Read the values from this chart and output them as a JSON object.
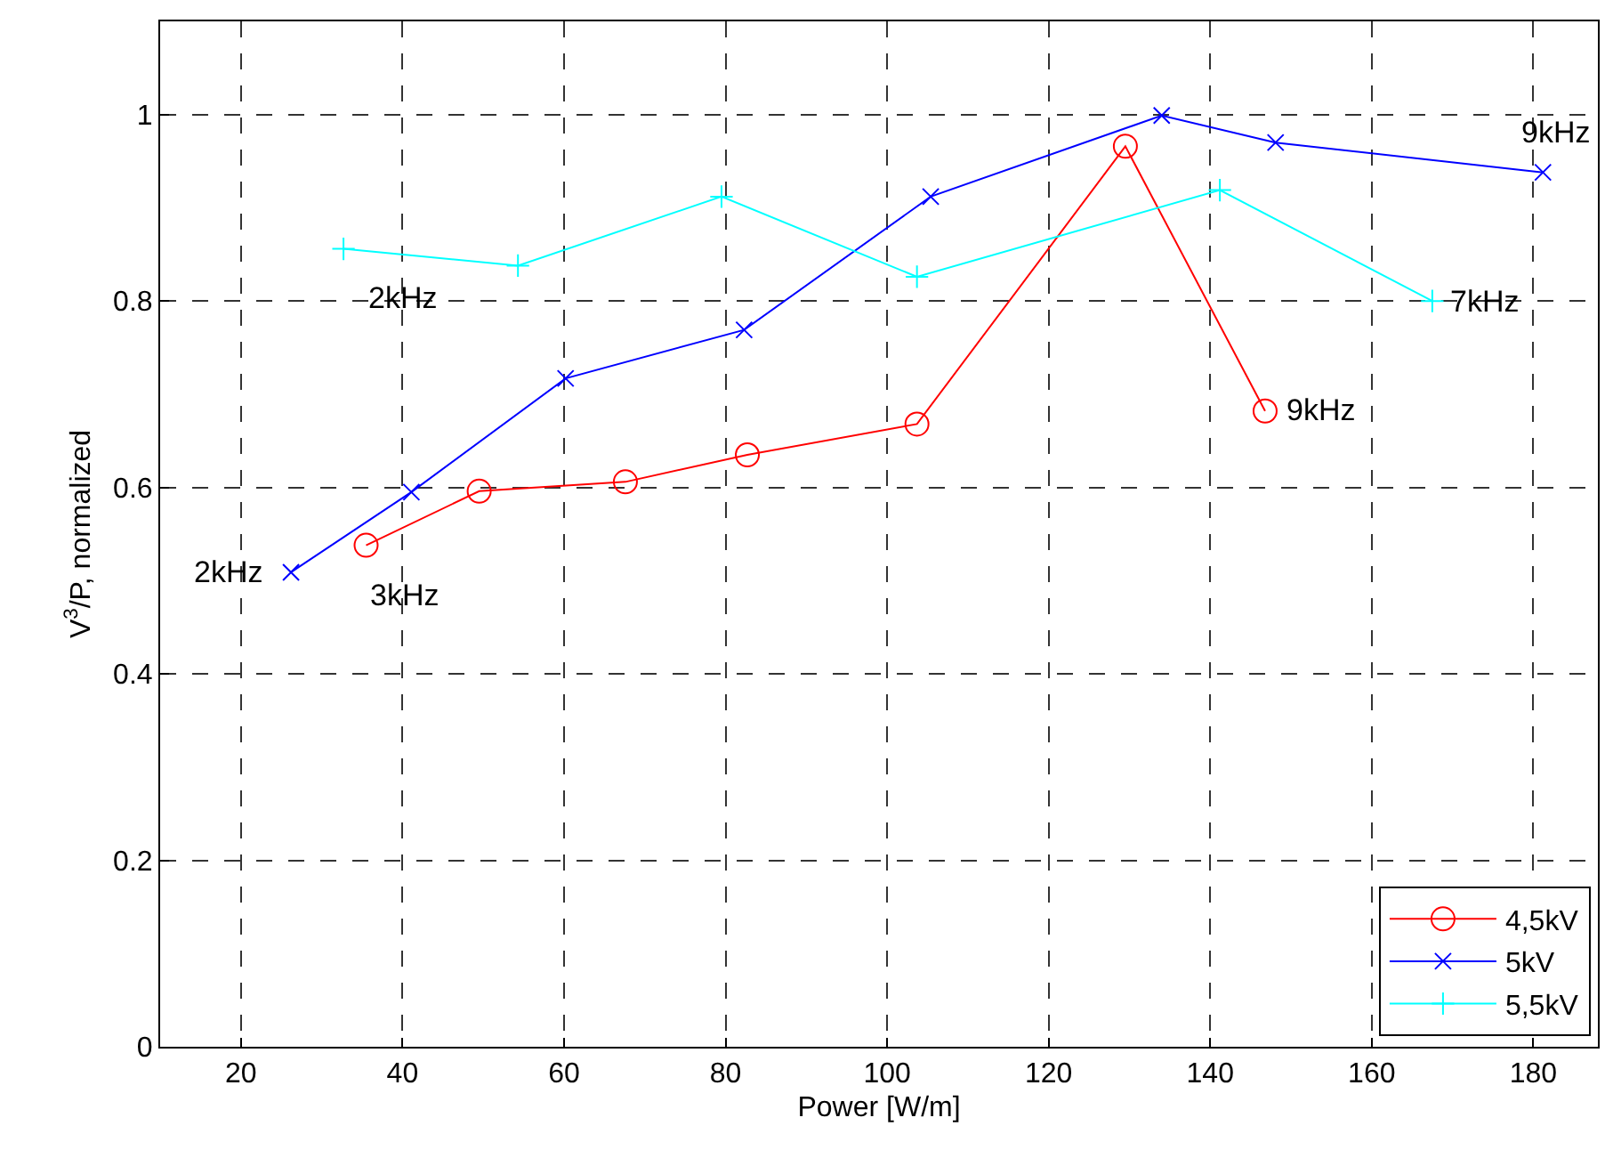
{
  "chart_data": {
    "type": "line",
    "xlabel": "Power [W/m]",
    "ylabel": "V$^{3}$/P, normalized",
    "xlim": [
      10,
      188
    ],
    "xticks": [
      20,
      40,
      60,
      80,
      100,
      120,
      140,
      160,
      180
    ],
    "ylim": [
      0,
      1.1
    ],
    "yticks": [
      0,
      0.2,
      0.4,
      0.6,
      0.8,
      1
    ],
    "grid": true,
    "legend": "bottom right",
    "line_style": "solid",
    "series": [
      {
        "name": "4,5kV",
        "color": "#ff0000",
        "marker": "circle",
        "x": [
          35.5,
          49.5,
          67.6,
          82.7,
          103.7,
          129.5,
          146.8
        ],
        "values": [
          0.538,
          0.596,
          0.606,
          0.635,
          0.668,
          0.966,
          0.682
        ]
      },
      {
        "name": "5kV",
        "color": "#0000ff",
        "marker": "cross",
        "x": [
          26.2,
          41.1,
          60.2,
          82.3,
          105.4,
          134.0,
          148.1,
          181.2
        ],
        "values": [
          0.509,
          0.595,
          0.717,
          0.769,
          0.912,
          0.999,
          0.97,
          0.938
        ]
      },
      {
        "name": "5,5kV",
        "color": "#00ffff",
        "marker": "plus",
        "x": [
          32.7,
          54.3,
          79.5,
          103.7,
          141.2,
          167.5
        ],
        "values": [
          0.856,
          0.838,
          0.912,
          0.826,
          0.919,
          0.8
        ]
      }
    ],
    "annotations": [
      {
        "text": "2kHz",
        "x": 32.7,
        "y": 0.856
      },
      {
        "text": "2kHz",
        "x": 26.2,
        "y": 0.509
      },
      {
        "text": "3kHz",
        "x": 35.5,
        "y": 0.538
      },
      {
        "text": "9kHz",
        "x": 146.8,
        "y": 0.682
      },
      {
        "text": "7kHz",
        "x": 167.5,
        "y": 0.8
      },
      {
        "text": "9kHz",
        "x": 181.2,
        "y": 0.938
      }
    ]
  }
}
